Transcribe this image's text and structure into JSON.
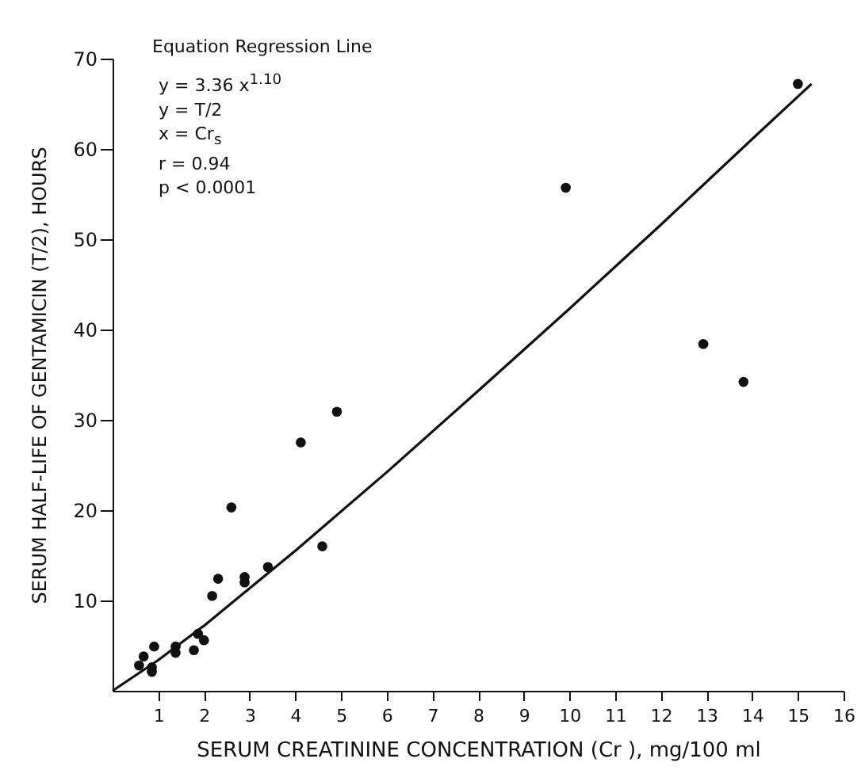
{
  "chart_data": {
    "type": "scatter",
    "xlabel": "SERUM CREATININE CONCENTRATION (Cr ), mg/100 ml",
    "ylabel": "SERUM HALF-LIFE OF GENTAMICIN (T/2), HOURS",
    "annotations": [
      "Equation Regression Line",
      "y = 3.36 x$^{1.10}$",
      "y = T/2",
      "x = Cr$_{s}$",
      "r = 0.94",
      "p < 0.0001"
    ],
    "xlim": [
      0,
      16
    ],
    "xticks": [
      1,
      2,
      3,
      4,
      5,
      6,
      7,
      8,
      9,
      10,
      11,
      12,
      13,
      14,
      15,
      16
    ],
    "ylim": [
      0,
      70
    ],
    "yticks": [
      10,
      20,
      30,
      40,
      50,
      60,
      70
    ],
    "grid": false,
    "series": [
      {
        "color": "#111111",
        "marker": "circle",
        "x": [
          0.58,
          0.68,
          0.86,
          0.86,
          0.91,
          1.38,
          1.38,
          1.78,
          1.87,
          2.0,
          2.18,
          2.31,
          2.6,
          2.89,
          2.89,
          3.4,
          4.12,
          4.59,
          4.91,
          9.92,
          12.93,
          13.81,
          15.0
        ],
        "values": [
          2.8,
          3.8,
          2.6,
          2.1,
          4.9,
          4.9,
          4.2,
          4.5,
          6.3,
          5.6,
          10.5,
          12.4,
          20.3,
          12.6,
          12.0,
          13.7,
          27.5,
          16.0,
          30.9,
          55.7,
          38.4,
          34.2,
          67.2
        ]
      },
      {
        "type": "line",
        "color": "#111111",
        "marker": "none",
        "line_style": "solid",
        "x": [
          0,
          1,
          2,
          4,
          6,
          8,
          10,
          12,
          14,
          15.3
        ],
        "values": [
          0,
          3.4,
          7.2,
          15.5,
          24.2,
          33.2,
          42.3,
          51.6,
          61.1,
          67.2
        ]
      }
    ]
  }
}
